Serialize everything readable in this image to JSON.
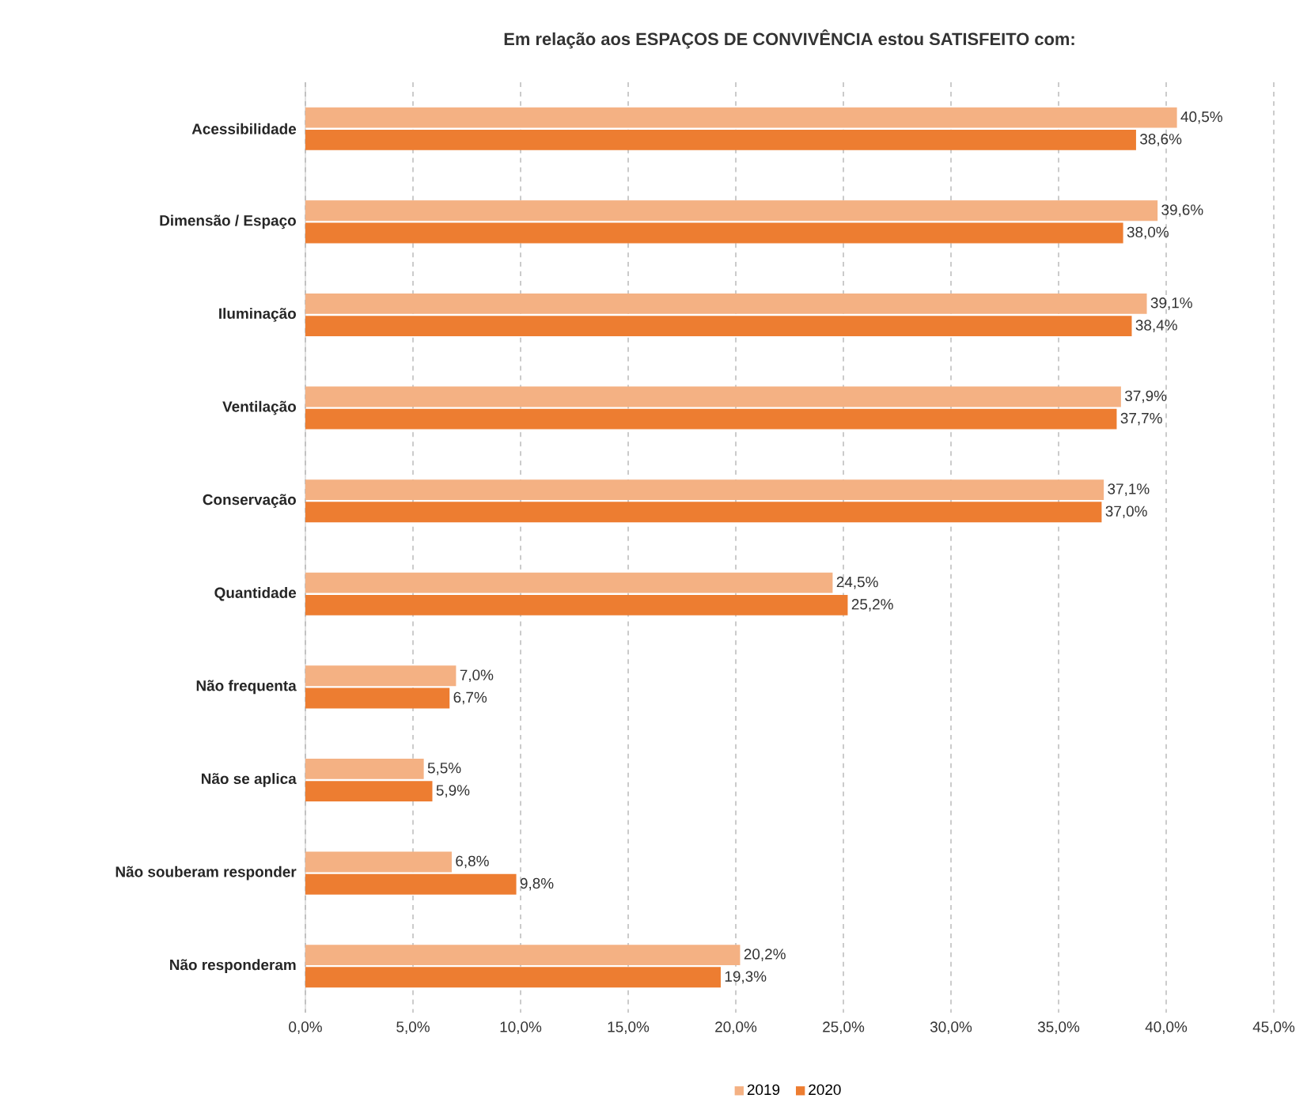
{
  "chart_data": {
    "type": "bar",
    "orientation": "horizontal",
    "title": "Em relação aos ESPAÇOS DE CONVIVÊNCIA estou SATISFEITO com:",
    "categories": [
      "Acessibilidade",
      "Dimensão / Espaço",
      "Iluminação",
      "Ventilação",
      "Conservação",
      "Quantidade",
      "Não frequenta",
      "Não se aplica",
      "Não souberam responder",
      "Não responderam"
    ],
    "series": [
      {
        "name": "2019",
        "color": "#f4b183",
        "values": [
          40.5,
          39.6,
          39.1,
          37.9,
          37.1,
          24.5,
          7.0,
          5.5,
          6.8,
          20.2
        ],
        "value_labels": [
          "40,5%",
          "39,6%",
          "39,1%",
          "37,9%",
          "37,1%",
          "24,5%",
          "7,0%",
          "5,5%",
          "6,8%",
          "20,2%"
        ]
      },
      {
        "name": "2020",
        "color": "#ed7d31",
        "values": [
          38.6,
          38.0,
          38.4,
          37.7,
          37.0,
          25.2,
          6.7,
          5.9,
          9.8,
          19.3
        ],
        "value_labels": [
          "38,6%",
          "38,0%",
          "38,4%",
          "37,7%",
          "37,0%",
          "25,2%",
          "6,7%",
          "5,9%",
          "9,8%",
          "19,3%"
        ]
      }
    ],
    "xlim": [
      0,
      45
    ],
    "xticks": [
      {
        "value": 0,
        "label": "0,0%"
      },
      {
        "value": 5,
        "label": "5,0%"
      },
      {
        "value": 10,
        "label": "10,0%"
      },
      {
        "value": 15,
        "label": "15,0%"
      },
      {
        "value": 20,
        "label": "20,0%"
      },
      {
        "value": 25,
        "label": "25,0%"
      },
      {
        "value": 30,
        "label": "30,0%"
      },
      {
        "value": 35,
        "label": "35,0%"
      },
      {
        "value": 40,
        "label": "40,0%"
      },
      {
        "value": 45,
        "label": "45,0%"
      }
    ],
    "grid": "x",
    "legend": "bottom"
  }
}
